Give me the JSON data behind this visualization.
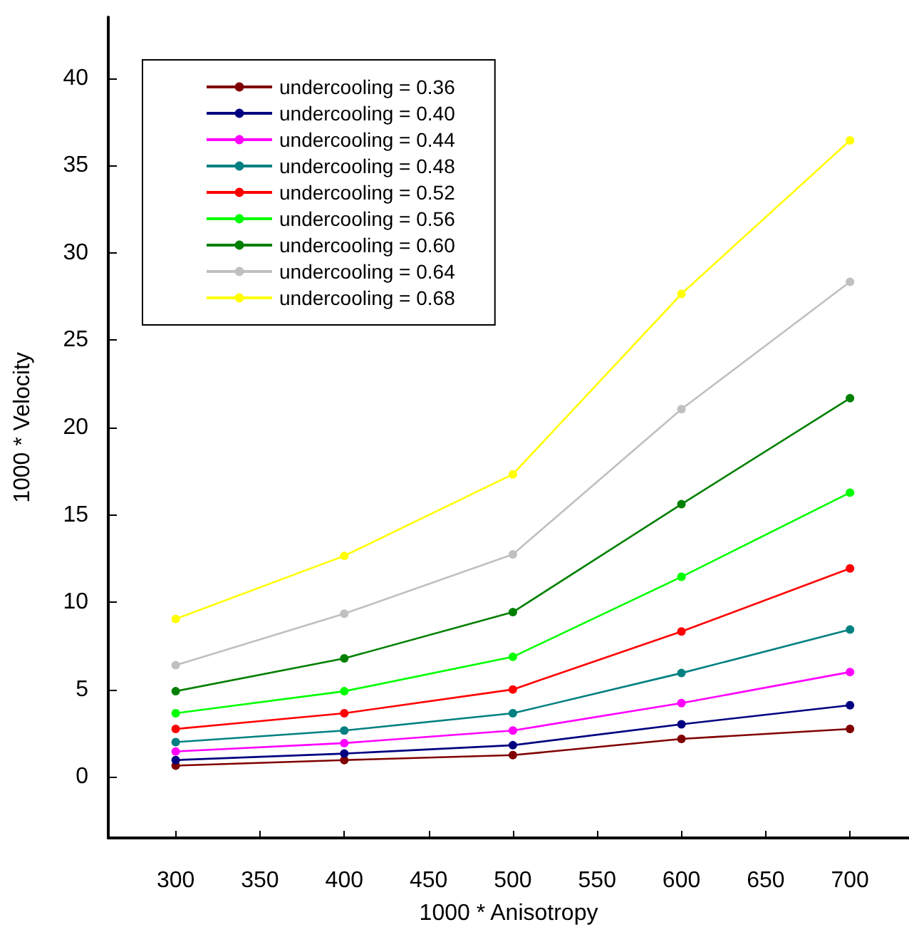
{
  "chart_data": {
    "type": "line",
    "xlabel": "1000 * Anisotropy",
    "ylabel": "1000 * Velocity",
    "x": [
      300,
      400,
      500,
      600,
      700
    ],
    "xlim": [
      260,
      735
    ],
    "xticks": [
      300,
      350,
      400,
      450,
      500,
      550,
      600,
      650,
      700
    ],
    "ylim": [
      -3.5,
      43.5
    ],
    "yticks": [
      0,
      5,
      10,
      15,
      20,
      25,
      30,
      35,
      40
    ],
    "grid": false,
    "legend": "top left",
    "marker": "circle",
    "line_style": "solid",
    "series": [
      {
        "name": "undercooling = 0.36",
        "color": "#800000",
        "values": [
          0.64,
          0.96,
          1.24,
          2.17,
          2.74
        ]
      },
      {
        "name": "undercooling = 0.40",
        "color": "#000080",
        "values": [
          0.96,
          1.33,
          1.81,
          3.01,
          4.1
        ]
      },
      {
        "name": "undercooling = 0.44",
        "color": "#ff00ff",
        "values": [
          1.45,
          1.93,
          2.65,
          4.22,
          6.0
        ]
      },
      {
        "name": "undercooling = 0.48",
        "color": "#008080",
        "values": [
          1.99,
          2.65,
          3.64,
          5.94,
          8.43
        ]
      },
      {
        "name": "undercooling = 0.52",
        "color": "#ff0000",
        "values": [
          2.74,
          3.64,
          5.0,
          8.32,
          11.93
        ]
      },
      {
        "name": "undercooling = 0.56",
        "color": "#00ff00",
        "values": [
          3.64,
          4.9,
          6.87,
          11.45,
          16.27
        ]
      },
      {
        "name": "undercooling = 0.60",
        "color": "#008000",
        "values": [
          4.9,
          6.78,
          9.43,
          15.61,
          21.68
        ]
      },
      {
        "name": "undercooling = 0.64",
        "color": "#c0c0c0",
        "values": [
          6.39,
          9.34,
          12.74,
          21.05,
          28.34
        ]
      },
      {
        "name": "undercooling = 0.68",
        "color": "#ffff00",
        "values": [
          9.04,
          12.65,
          17.32,
          27.65,
          36.44
        ]
      }
    ]
  }
}
